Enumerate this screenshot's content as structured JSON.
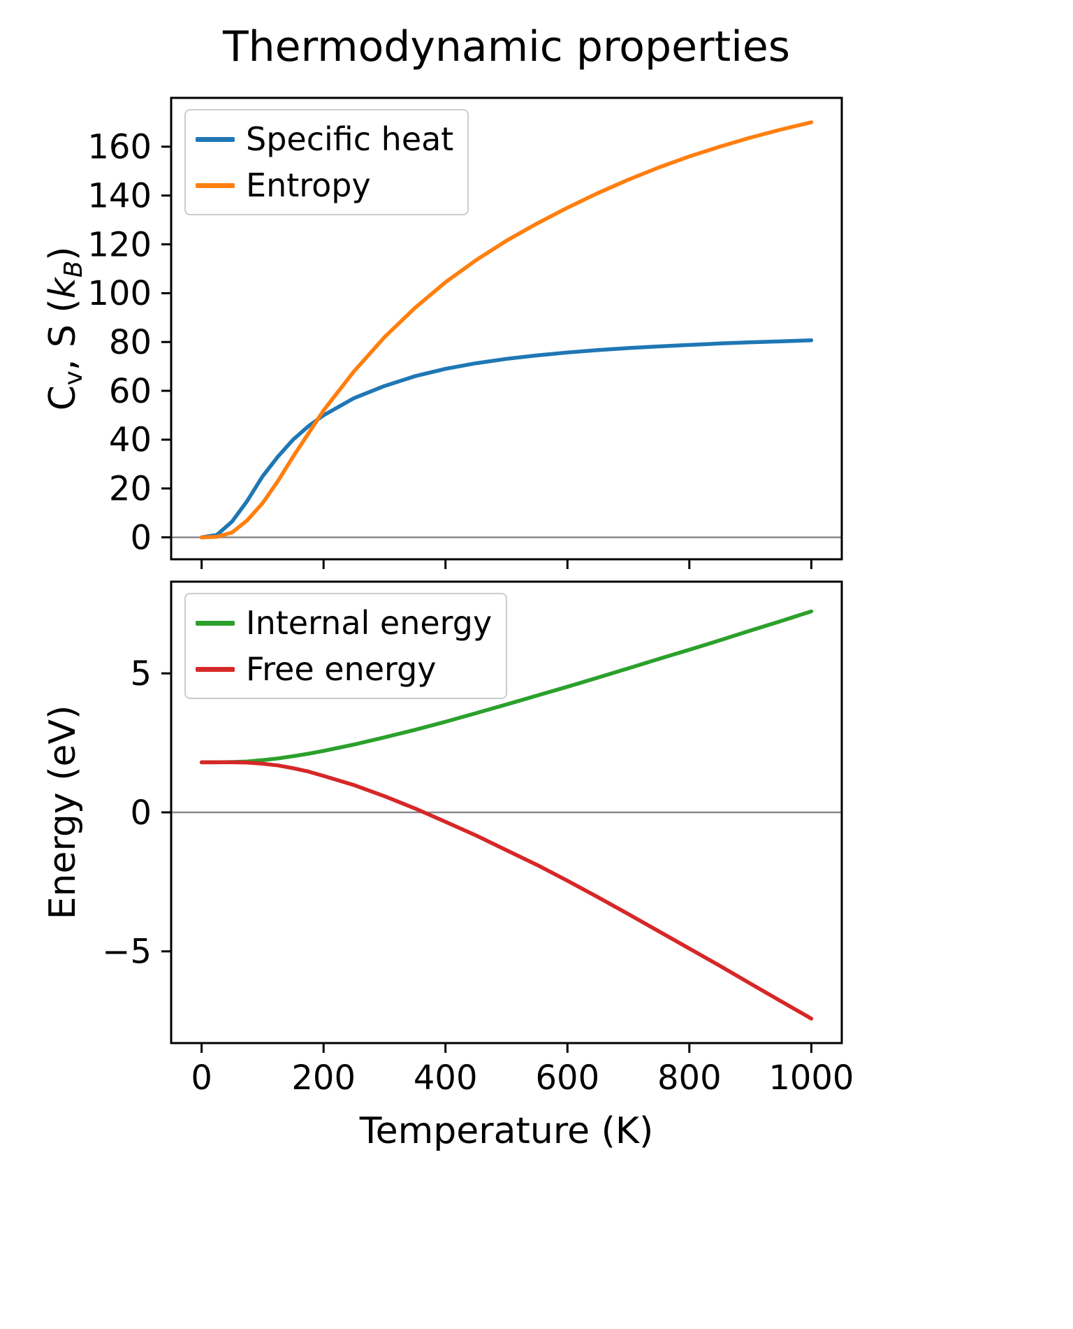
{
  "chart_data": [
    {
      "type": "line",
      "title": "Thermodynamic properties",
      "ylabel_rich": [
        {
          "t": "C"
        },
        {
          "t": "v",
          "sub": true
        },
        {
          "t": ", S ("
        },
        {
          "t": "k",
          "italic": true
        },
        {
          "t": "B",
          "sub": true,
          "italic": true
        },
        {
          "t": ")"
        }
      ],
      "xlim": [
        -50,
        1050
      ],
      "ylim": [
        -9,
        180
      ],
      "xticks": [
        0,
        200,
        400,
        600,
        800,
        1000
      ],
      "xtick_labels": [
        "0",
        "200",
        "400",
        "600",
        "800",
        "1000"
      ],
      "yticks": [
        0,
        20,
        40,
        60,
        80,
        100,
        120,
        140,
        160
      ],
      "ytick_labels": [
        "0",
        "20",
        "40",
        "60",
        "80",
        "100",
        "120",
        "140",
        "160"
      ],
      "zero_line": 0,
      "zero_line_color": "#888888",
      "legend_position": "upper left",
      "x": [
        0,
        25,
        50,
        75,
        100,
        125,
        150,
        175,
        200,
        250,
        300,
        350,
        400,
        450,
        500,
        550,
        600,
        650,
        700,
        750,
        800,
        850,
        900,
        950,
        1000
      ],
      "series": [
        {
          "name": "Specific heat",
          "color": "#1f77b4",
          "values": [
            0,
            1,
            6.5,
            15,
            25,
            33,
            40,
            45.5,
            50,
            57,
            62,
            66,
            69,
            71.3,
            73.1,
            74.5,
            75.7,
            76.7,
            77.5,
            78.2,
            78.8,
            79.4,
            79.9,
            80.3,
            80.7
          ]
        },
        {
          "name": "Entropy",
          "color": "#ff7f0e",
          "values": [
            0,
            0.2,
            2,
            7,
            14,
            23,
            33,
            42.5,
            52,
            68,
            82,
            94,
            104.5,
            113.5,
            121.5,
            128.5,
            135,
            141,
            146.5,
            151.5,
            156,
            160,
            163.7,
            167,
            170
          ]
        }
      ]
    },
    {
      "type": "line",
      "xlabel": "Temperature (K)",
      "ylabel": "Energy (eV)",
      "xlim": [
        -50,
        1050
      ],
      "ylim": [
        -8.3,
        8.3
      ],
      "xticks": [
        0,
        200,
        400,
        600,
        800,
        1000
      ],
      "xtick_labels": [
        "0",
        "200",
        "400",
        "600",
        "800",
        "1000"
      ],
      "yticks": [
        -5,
        0,
        5
      ],
      "ytick_labels": [
        "−5",
        "0",
        "5"
      ],
      "zero_line": 0,
      "zero_line_color": "#888888",
      "legend_position": "upper left",
      "x": [
        0,
        25,
        50,
        75,
        100,
        125,
        150,
        175,
        200,
        250,
        300,
        350,
        400,
        450,
        500,
        550,
        600,
        650,
        700,
        750,
        800,
        850,
        900,
        950,
        1000
      ],
      "series": [
        {
          "name": "Internal energy",
          "color": "#2ca02c",
          "values": [
            1.8,
            1.8,
            1.81,
            1.83,
            1.88,
            1.94,
            2.02,
            2.11,
            2.21,
            2.44,
            2.7,
            2.97,
            3.26,
            3.57,
            3.88,
            4.2,
            4.52,
            4.85,
            5.18,
            5.52,
            5.85,
            6.19,
            6.54,
            6.88,
            7.23
          ]
        },
        {
          "name": "Free energy",
          "color": "#d62728",
          "values": [
            1.8,
            1.8,
            1.8,
            1.79,
            1.75,
            1.69,
            1.59,
            1.47,
            1.31,
            0.98,
            0.58,
            0.14,
            -0.34,
            -0.83,
            -1.36,
            -1.89,
            -2.46,
            -3.05,
            -3.66,
            -4.28,
            -4.9,
            -5.52,
            -6.16,
            -6.79,
            -7.42
          ]
        }
      ]
    }
  ]
}
